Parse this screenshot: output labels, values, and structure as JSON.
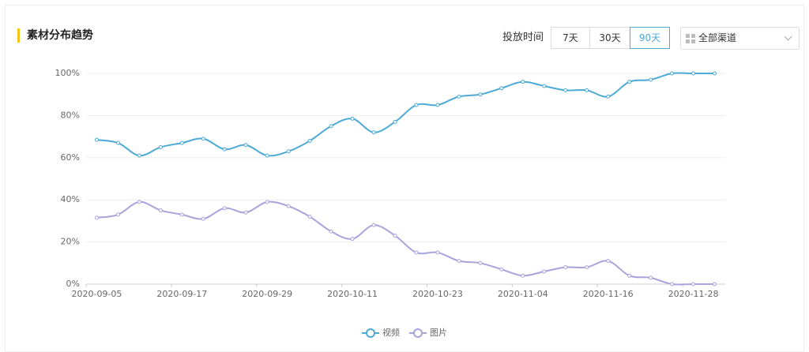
{
  "header": {
    "title": "素材分布趋势",
    "filter_label": "投放时间",
    "range_options": [
      "7天",
      "30天",
      "90天"
    ],
    "channel_select": "全部渠道"
  },
  "chart_data": {
    "type": "line",
    "categories": [
      "2020-09-05",
      null,
      null,
      null,
      "2020-09-17",
      null,
      null,
      null,
      "2020-09-29",
      null,
      null,
      null,
      "2020-10-11",
      null,
      null,
      null,
      "2020-10-23",
      null,
      null,
      null,
      "2020-11-04",
      null,
      null,
      null,
      "2020-11-16",
      null,
      null,
      null,
      "2020-11-28",
      null
    ],
    "series": [
      {
        "name": "视频",
        "color": "#4da9d6",
        "values": [
          68.5,
          67,
          61,
          65,
          67,
          69,
          64,
          66,
          61,
          63,
          68,
          75,
          78.5,
          72,
          77,
          85,
          85,
          89,
          90,
          93,
          96,
          94,
          92,
          92,
          89,
          96,
          97,
          100,
          100,
          100
        ]
      },
      {
        "name": "图片",
        "color": "#a7a4dd",
        "values": [
          31.5,
          33,
          39,
          35,
          33,
          31,
          36,
          34,
          39,
          37,
          32,
          25,
          21.5,
          28,
          23,
          15,
          15,
          11,
          10,
          7,
          4,
          6,
          8,
          8,
          11,
          4,
          3,
          0,
          0,
          0
        ]
      }
    ],
    "ylim": [
      0,
      100
    ],
    "yticks": [
      {
        "value": 0,
        "label": "0%"
      },
      {
        "value": 20,
        "label": "20%"
      },
      {
        "value": 40,
        "label": "40%"
      },
      {
        "value": 60,
        "label": "60%"
      },
      {
        "value": 80,
        "label": "80%"
      },
      {
        "value": 100,
        "label": "100%"
      }
    ],
    "grid": true,
    "smooth": true,
    "legend": "bottom"
  }
}
